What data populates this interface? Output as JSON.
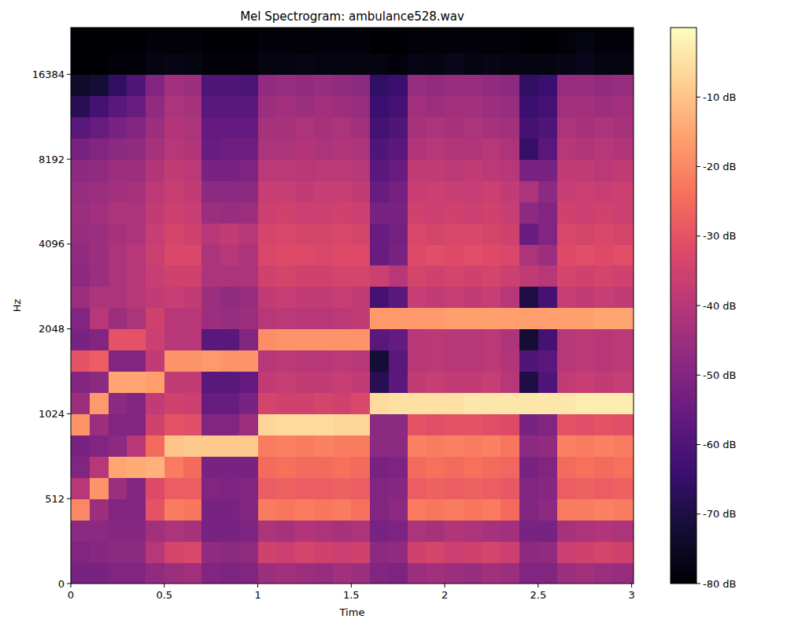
{
  "chart_data": {
    "type": "heatmap",
    "title": "Mel Spectrogram: ambulance528.wav",
    "x_label": "Time",
    "y_label": "Hz",
    "color": "magma",
    "log": "y",
    "xlim": [
      0,
      3.01
    ],
    "xticks": [
      0,
      0.5,
      1,
      1.5,
      2,
      2.5,
      3
    ],
    "ylim": [
      0,
      24000
    ],
    "yticks": [
      0,
      512,
      1024,
      2048,
      4096,
      8192,
      16384
    ],
    "x_bins": [
      0,
      0.1,
      0.2,
      0.3,
      0.4,
      0.5,
      0.6,
      0.7,
      0.8,
      0.9,
      1,
      1.1,
      1.2,
      1.3,
      1.4,
      1.5,
      1.6,
      1.7,
      1.8,
      1.9,
      2,
      2.1,
      2.2,
      2.3,
      2.4,
      2.5,
      2.6,
      2.7,
      2.8,
      2.9,
      3.01
    ],
    "y_bins": [
      0,
      128,
      256,
      384,
      512,
      609,
      724,
      861,
      1024,
      1218,
      1448,
      1722,
      2048,
      2435,
      2896,
      3444,
      4096,
      4871,
      5793,
      6889,
      8192,
      9742,
      11585,
      13777,
      16384,
      19484,
      23170,
      24000
    ],
    "cells": [
      [
        -52,
        -52,
        -50,
        -50,
        -47,
        -45,
        -44,
        -50,
        -51,
        -50,
        -45,
        -44,
        -45,
        -46,
        -44,
        -45,
        -50,
        -51,
        -45,
        -44,
        -45,
        -46,
        -44,
        -45,
        -50,
        -50,
        -45,
        -44,
        -45,
        -46
      ],
      [
        -50,
        -49,
        -48,
        -48,
        -40,
        -34,
        -33,
        -47,
        -48,
        -47,
        -35,
        -36,
        -34,
        -35,
        -36,
        -35,
        -48,
        -47,
        -35,
        -34,
        -36,
        -35,
        -34,
        -36,
        -48,
        -47,
        -36,
        -35,
        -34,
        -35
      ],
      [
        -48,
        -48,
        -49,
        -49,
        -44,
        -42,
        -43,
        -52,
        -52,
        -51,
        -42,
        -43,
        -41,
        -42,
        -43,
        -42,
        -52,
        -51,
        -42,
        -43,
        -41,
        -42,
        -43,
        -44,
        -52,
        -52,
        -43,
        -42,
        -41,
        -42
      ],
      [
        -20,
        -45,
        -50,
        -50,
        -30,
        -22,
        -23,
        -52,
        -52,
        -50,
        -22,
        -23,
        -22,
        -23,
        -22,
        -24,
        -50,
        -48,
        -22,
        -23,
        -22,
        -23,
        -22,
        -25,
        -50,
        -48,
        -22,
        -22,
        -21,
        -22
      ],
      [
        -40,
        -18,
        -45,
        -50,
        -32,
        -28,
        -28,
        -50,
        -51,
        -50,
        -28,
        -27,
        -28,
        -28,
        -27,
        -28,
        -50,
        -49,
        -28,
        -27,
        -28,
        -27,
        -28,
        -29,
        -50,
        -49,
        -28,
        -27,
        -28,
        -27
      ],
      [
        -50,
        -40,
        -15,
        -14,
        -13,
        -22,
        -25,
        -52,
        -52,
        -52,
        -25,
        -24,
        -25,
        -25,
        -24,
        -25,
        -52,
        -51,
        -25,
        -24,
        -25,
        -24,
        -25,
        -26,
        -52,
        -50,
        -25,
        -24,
        -25,
        -24
      ],
      [
        -52,
        -50,
        -48,
        -40,
        -25,
        -10,
        -9,
        -9,
        -9,
        -9,
        -22,
        -21,
        -22,
        -21,
        -22,
        -22,
        -48,
        -48,
        -21,
        -22,
        -21,
        -22,
        -21,
        -23,
        -48,
        -47,
        -21,
        -22,
        -21,
        -22
      ],
      [
        -18,
        -45,
        -50,
        -50,
        -35,
        -30,
        -31,
        -50,
        -50,
        -45,
        -7,
        -6,
        -6,
        -6,
        -7,
        -7,
        -48,
        -48,
        -30,
        -31,
        -30,
        -30,
        -31,
        -32,
        -52,
        -50,
        -30,
        -31,
        -30,
        -31
      ],
      [
        -45,
        -17,
        -48,
        -50,
        -38,
        -35,
        -36,
        -55,
        -55,
        -52,
        -34,
        -35,
        -35,
        -34,
        -35,
        -33,
        -6,
        -5,
        -5,
        -5,
        -5,
        -4,
        -4,
        -4,
        -4,
        -4,
        -4,
        -3,
        -3,
        -3
      ],
      [
        -50,
        -48,
        -15,
        -15,
        -16,
        -38,
        -38,
        -58,
        -58,
        -56,
        -38,
        -37,
        -38,
        -38,
        -37,
        -38,
        -68,
        -58,
        -38,
        -37,
        -38,
        -38,
        -37,
        -40,
        -70,
        -60,
        -38,
        -37,
        -38,
        -37
      ],
      [
        -30,
        -28,
        -50,
        -50,
        -38,
        -18,
        -18,
        -17,
        -18,
        -18,
        -40,
        -39,
        -40,
        -40,
        -39,
        -40,
        -72,
        -58,
        -40,
        -39,
        -40,
        -40,
        -39,
        -41,
        -60,
        -58,
        -40,
        -39,
        -40,
        -39
      ],
      [
        -52,
        -50,
        -30,
        -30,
        -36,
        -40,
        -40,
        -58,
        -58,
        -50,
        -19,
        -18,
        -18,
        -18,
        -18,
        -18,
        -58,
        -56,
        -40,
        -39,
        -40,
        -40,
        -39,
        -42,
        -72,
        -62,
        -40,
        -39,
        -40,
        -39
      ],
      [
        -50,
        -40,
        -45,
        -42,
        -35,
        -40,
        -40,
        -45,
        -46,
        -45,
        -40,
        -39,
        -40,
        -40,
        -39,
        -38,
        -17,
        -17,
        -17,
        -17,
        -16,
        -16,
        -16,
        -16,
        -16,
        -16,
        -16,
        -16,
        -15,
        -15
      ],
      [
        -45,
        -42,
        -42,
        -40,
        -38,
        -37,
        -38,
        -45,
        -47,
        -46,
        -38,
        -37,
        -38,
        -38,
        -37,
        -38,
        -62,
        -58,
        -37,
        -38,
        -37,
        -38,
        -37,
        -40,
        -70,
        -62,
        -37,
        -38,
        -37,
        -38
      ],
      [
        -48,
        -45,
        -42,
        -40,
        -37,
        -35,
        -35,
        -42,
        -42,
        -42,
        -35,
        -34,
        -35,
        -35,
        -34,
        -34,
        -36,
        -40,
        -34,
        -35,
        -34,
        -35,
        -34,
        -36,
        -38,
        -40,
        -34,
        -35,
        -34,
        -35
      ],
      [
        -47,
        -45,
        -42,
        -40,
        -36,
        -33,
        -33,
        -42,
        -40,
        -42,
        -33,
        -32,
        -32,
        -33,
        -32,
        -32,
        -55,
        -52,
        -32,
        -31,
        -32,
        -31,
        -32,
        -33,
        -42,
        -45,
        -32,
        -31,
        -32,
        -31
      ],
      [
        -46,
        -45,
        -43,
        -42,
        -37,
        -34,
        -35,
        -40,
        -38,
        -40,
        -34,
        -33,
        -34,
        -34,
        -33,
        -34,
        -55,
        -53,
        -33,
        -34,
        -33,
        -33,
        -34,
        -35,
        -55,
        -50,
        -33,
        -34,
        -33,
        -34
      ],
      [
        -45,
        -44,
        -42,
        -42,
        -38,
        -36,
        -37,
        -45,
        -46,
        -45,
        -36,
        -35,
        -36,
        -36,
        -35,
        -36,
        -52,
        -52,
        -35,
        -36,
        -35,
        -36,
        -35,
        -37,
        -48,
        -50,
        -35,
        -36,
        -35,
        -36
      ],
      [
        -46,
        -45,
        -44,
        -43,
        -39,
        -37,
        -38,
        -48,
        -48,
        -48,
        -37,
        -37,
        -38,
        -37,
        -37,
        -38,
        -55,
        -53,
        -37,
        -36,
        -37,
        -37,
        -36,
        -38,
        -42,
        -48,
        -37,
        -36,
        -37,
        -36
      ],
      [
        -48,
        -47,
        -45,
        -45,
        -41,
        -38,
        -39,
        -52,
        -52,
        -51,
        -39,
        -39,
        -40,
        -39,
        -39,
        -40,
        -58,
        -55,
        -38,
        -38,
        -39,
        -38,
        -39,
        -40,
        -52,
        -52,
        -38,
        -38,
        -39,
        -38
      ],
      [
        -52,
        -50,
        -48,
        -47,
        -43,
        -40,
        -41,
        -55,
        -54,
        -54,
        -42,
        -42,
        -41,
        -42,
        -41,
        -42,
        -60,
        -58,
        -41,
        -40,
        -41,
        -41,
        -40,
        -42,
        -65,
        -58,
        -40,
        -41,
        -40,
        -41
      ],
      [
        -58,
        -55,
        -52,
        -50,
        -45,
        -41,
        -42,
        -56,
        -56,
        -56,
        -43,
        -43,
        -42,
        -43,
        -42,
        -44,
        -62,
        -60,
        -43,
        -42,
        -43,
        -42,
        -43,
        -44,
        -62,
        -60,
        -42,
        -43,
        -42,
        -43
      ],
      [
        -68,
        -62,
        -58,
        -55,
        -47,
        -42,
        -43,
        -58,
        -58,
        -58,
        -45,
        -44,
        -45,
        -44,
        -45,
        -46,
        -64,
        -62,
        -44,
        -45,
        -44,
        -44,
        -45,
        -46,
        -64,
        -62,
        -44,
        -44,
        -45,
        -44
      ],
      [
        -74,
        -72,
        -66,
        -60,
        -50,
        -44,
        -45,
        -60,
        -60,
        -61,
        -47,
        -46,
        -47,
        -46,
        -47,
        -48,
        -66,
        -64,
        -46,
        -47,
        -46,
        -46,
        -47,
        -48,
        -66,
        -64,
        -46,
        -46,
        -47,
        -46
      ],
      [
        -80,
        -80,
        -79,
        -79,
        -78,
        -77,
        -78,
        -79,
        -79,
        -79,
        -78,
        -78,
        -77,
        -78,
        -78,
        -78,
        -78,
        -79,
        -77,
        -78,
        -76,
        -78,
        -77,
        -78,
        -78,
        -78,
        -77,
        -76,
        -78,
        -78
      ],
      [
        -80,
        -80,
        -80,
        -80,
        -79,
        -79,
        -79,
        -80,
        -80,
        -80,
        -79,
        -79,
        -79,
        -79,
        -79,
        -79,
        -80,
        -80,
        -79,
        -79,
        -79,
        -79,
        -79,
        -79,
        -80,
        -80,
        -79,
        -78,
        -79,
        -79
      ],
      [
        -80,
        -80,
        -80,
        -80,
        -80,
        -80,
        -80,
        -80,
        -80,
        -80,
        -80,
        -80,
        -80,
        -80,
        -80,
        -80,
        -80,
        -80,
        -80,
        -80,
        -80,
        -80,
        -80,
        -80,
        -80,
        -80,
        -80,
        -80,
        -80,
        -80
      ]
    ],
    "color_range": [
      -80,
      0
    ],
    "color_ticks": [
      {
        "value": -10,
        "label": "-10 dB"
      },
      {
        "value": -20,
        "label": "-20 dB"
      },
      {
        "value": -30,
        "label": "-30 dB"
      },
      {
        "value": -40,
        "label": "-40 dB"
      },
      {
        "value": -50,
        "label": "-50 dB"
      },
      {
        "value": -60,
        "label": "-60 dB"
      },
      {
        "value": -70,
        "label": "-70 dB"
      },
      {
        "value": -80,
        "label": "-80 dB"
      }
    ]
  }
}
